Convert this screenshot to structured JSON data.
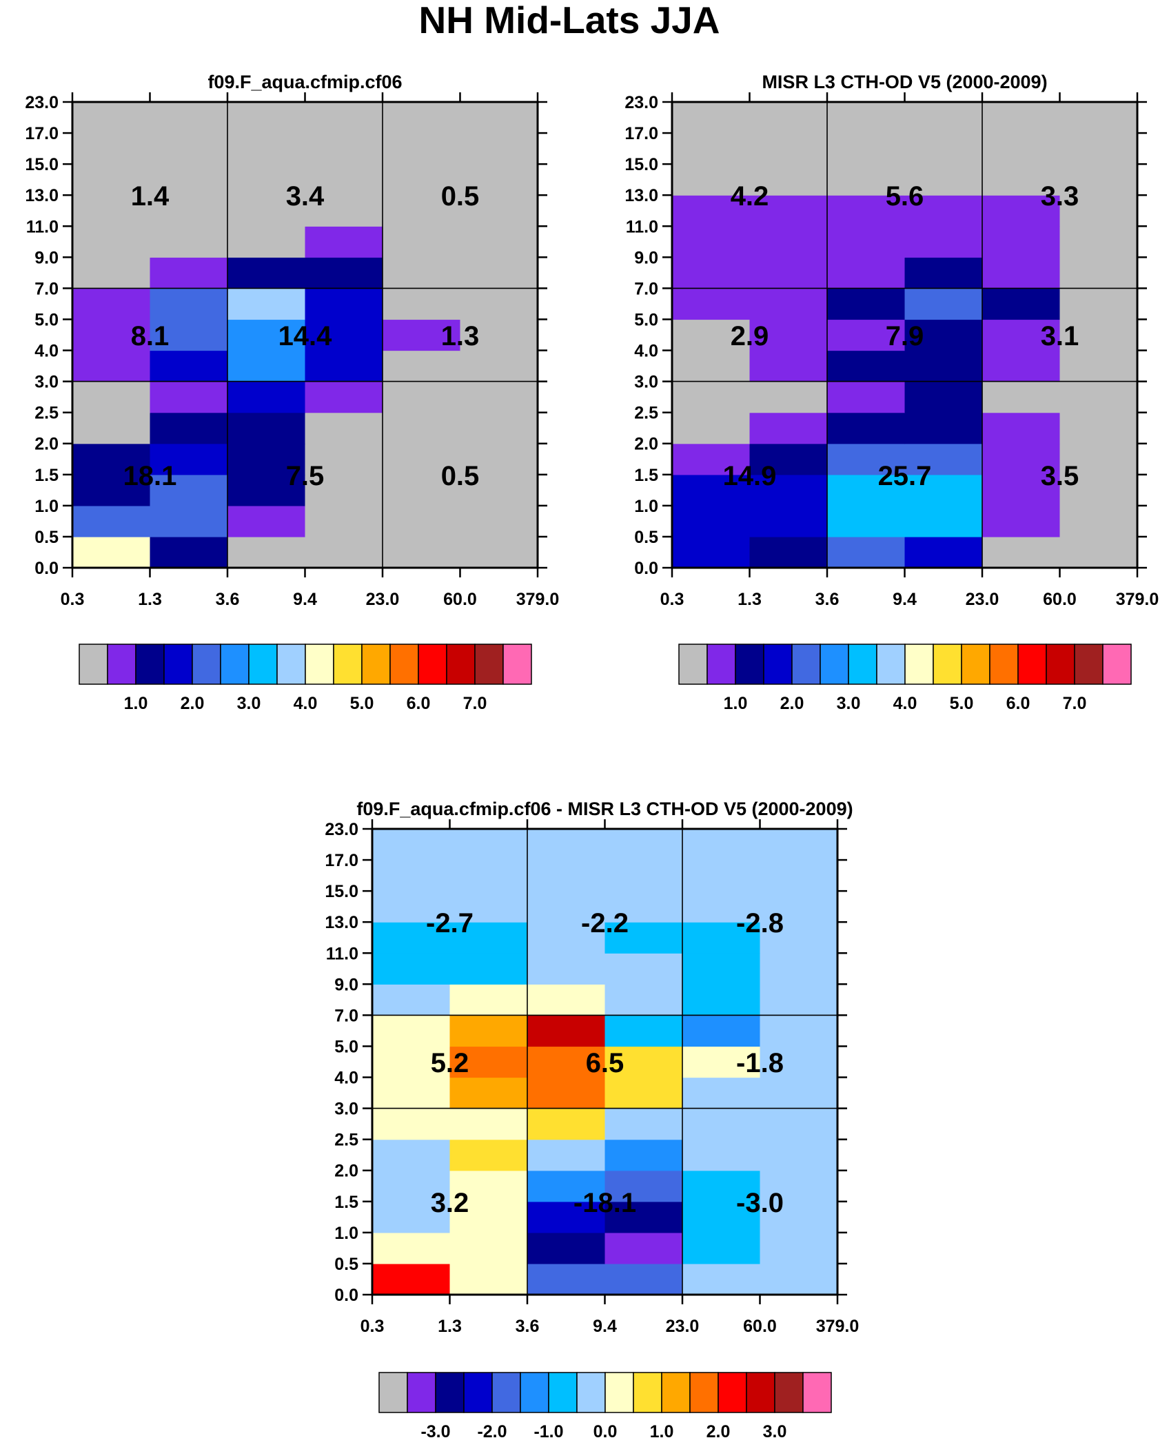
{
  "title": "NH Mid-Lats JJA",
  "colors": {
    "palette": [
      "#bebebe",
      "#8028e8",
      "#00008c",
      "#0000cc",
      "#4169e1",
      "#1e90ff",
      "#00bfff",
      "#a0d0ff",
      "#ffffc8",
      "#ffe030",
      "#ffa800",
      "#ff7000",
      "#ff0000",
      "#c80000",
      "#a02020",
      "#ff69b4"
    ]
  },
  "chart_data": [
    {
      "type": "heatmap",
      "title": "f09.F_aqua.cfmip.cf06",
      "x_ticks": [
        "0.3",
        "1.3",
        "3.6",
        "9.4",
        "23.0",
        "60.0",
        "379.0"
      ],
      "y_ticks": [
        "0.0",
        "0.5",
        "1.0",
        "1.5",
        "2.0",
        "2.5",
        "3.0",
        "4.0",
        "5.0",
        "7.0",
        "9.0",
        "11.0",
        "13.0",
        "15.0",
        "17.0",
        "23.0"
      ],
      "grid_rows": [
        [
          8,
          2,
          0,
          0,
          0,
          0
        ],
        [
          4,
          4,
          1,
          0,
          0,
          0
        ],
        [
          2,
          4,
          2,
          0,
          0,
          0
        ],
        [
          2,
          3,
          2,
          0,
          0,
          0
        ],
        [
          0,
          2,
          2,
          0,
          0,
          0
        ],
        [
          0,
          1,
          3,
          1,
          0,
          0
        ],
        [
          1,
          3,
          5,
          3,
          0,
          0
        ],
        [
          1,
          4,
          5,
          3,
          1,
          0
        ],
        [
          1,
          4,
          7,
          3,
          0,
          0
        ],
        [
          0,
          1,
          2,
          2,
          0,
          0
        ],
        [
          0,
          0,
          0,
          1,
          0,
          0
        ],
        [
          0,
          0,
          0,
          0,
          0,
          0
        ],
        [
          0,
          0,
          0,
          0,
          0,
          0
        ],
        [
          0,
          0,
          0,
          0,
          0,
          0
        ],
        [
          0,
          0,
          0,
          0,
          0,
          0
        ]
      ],
      "summary_values": [
        [
          "18.1",
          "7.5",
          "0.5"
        ],
        [
          "8.1",
          "14.4",
          "1.3"
        ],
        [
          "1.4",
          "3.4",
          "0.5"
        ]
      ],
      "colorbar_labels": [
        "1.0",
        "2.0",
        "3.0",
        "4.0",
        "5.0",
        "6.0",
        "7.0"
      ]
    },
    {
      "type": "heatmap",
      "title": "MISR L3 CTH-OD V5 (2000-2009)",
      "x_ticks": [
        "0.3",
        "1.3",
        "3.6",
        "9.4",
        "23.0",
        "60.0",
        "379.0"
      ],
      "y_ticks": [
        "0.0",
        "0.5",
        "1.0",
        "1.5",
        "2.0",
        "2.5",
        "3.0",
        "4.0",
        "5.0",
        "7.0",
        "9.0",
        "11.0",
        "13.0",
        "15.0",
        "17.0",
        "23.0"
      ],
      "grid_rows": [
        [
          3,
          2,
          4,
          3,
          0,
          0
        ],
        [
          3,
          3,
          6,
          6,
          1,
          0
        ],
        [
          3,
          3,
          6,
          6,
          1,
          0
        ],
        [
          1,
          2,
          4,
          4,
          1,
          0
        ],
        [
          0,
          1,
          2,
          2,
          1,
          0
        ],
        [
          0,
          0,
          1,
          2,
          0,
          0
        ],
        [
          0,
          1,
          2,
          2,
          1,
          0
        ],
        [
          0,
          1,
          1,
          2,
          1,
          0
        ],
        [
          1,
          1,
          2,
          4,
          2,
          0
        ],
        [
          1,
          1,
          1,
          2,
          1,
          0
        ],
        [
          1,
          1,
          1,
          1,
          1,
          0
        ],
        [
          1,
          1,
          1,
          1,
          1,
          0
        ],
        [
          0,
          0,
          0,
          0,
          0,
          0
        ],
        [
          0,
          0,
          0,
          0,
          0,
          0
        ],
        [
          0,
          0,
          0,
          0,
          0,
          0
        ]
      ],
      "summary_values": [
        [
          "14.9",
          "25.7",
          "3.5"
        ],
        [
          "2.9",
          "7.9",
          "3.1"
        ],
        [
          "4.2",
          "5.6",
          "3.3"
        ]
      ],
      "colorbar_labels": [
        "1.0",
        "2.0",
        "3.0",
        "4.0",
        "5.0",
        "6.0",
        "7.0"
      ]
    },
    {
      "type": "heatmap",
      "title": "f09.F_aqua.cfmip.cf06 - MISR L3 CTH-OD V5 (2000-2009)",
      "x_ticks": [
        "0.3",
        "1.3",
        "3.6",
        "9.4",
        "23.0",
        "60.0",
        "379.0"
      ],
      "y_ticks": [
        "0.0",
        "0.5",
        "1.0",
        "1.5",
        "2.0",
        "2.5",
        "3.0",
        "4.0",
        "5.0",
        "7.0",
        "9.0",
        "11.0",
        "13.0",
        "15.0",
        "17.0",
        "23.0"
      ],
      "grid_rows": [
        [
          12,
          8,
          4,
          4,
          7,
          7
        ],
        [
          8,
          8,
          2,
          1,
          6,
          7
        ],
        [
          7,
          8,
          3,
          2,
          6,
          7
        ],
        [
          7,
          8,
          5,
          4,
          6,
          7
        ],
        [
          7,
          9,
          7,
          5,
          7,
          7
        ],
        [
          8,
          8,
          9,
          7,
          7,
          7
        ],
        [
          8,
          10,
          11,
          9,
          7,
          7
        ],
        [
          8,
          11,
          11,
          9,
          8,
          7
        ],
        [
          8,
          10,
          13,
          6,
          5,
          7
        ],
        [
          7,
          8,
          8,
          7,
          6,
          7
        ],
        [
          6,
          6,
          7,
          7,
          6,
          7
        ],
        [
          6,
          6,
          7,
          6,
          6,
          7
        ],
        [
          7,
          7,
          7,
          7,
          7,
          7
        ],
        [
          7,
          7,
          7,
          7,
          7,
          7
        ],
        [
          7,
          7,
          7,
          7,
          7,
          7
        ]
      ],
      "summary_values": [
        [
          "3.2",
          "-18.1",
          "-3.0"
        ],
        [
          "5.2",
          "6.5",
          "-1.8"
        ],
        [
          "-2.7",
          "-2.2",
          "-2.8"
        ]
      ],
      "colorbar_labels": [
        "-3.0",
        "-2.0",
        "-1.0",
        "0.0",
        "1.0",
        "2.0",
        "3.0"
      ]
    }
  ]
}
